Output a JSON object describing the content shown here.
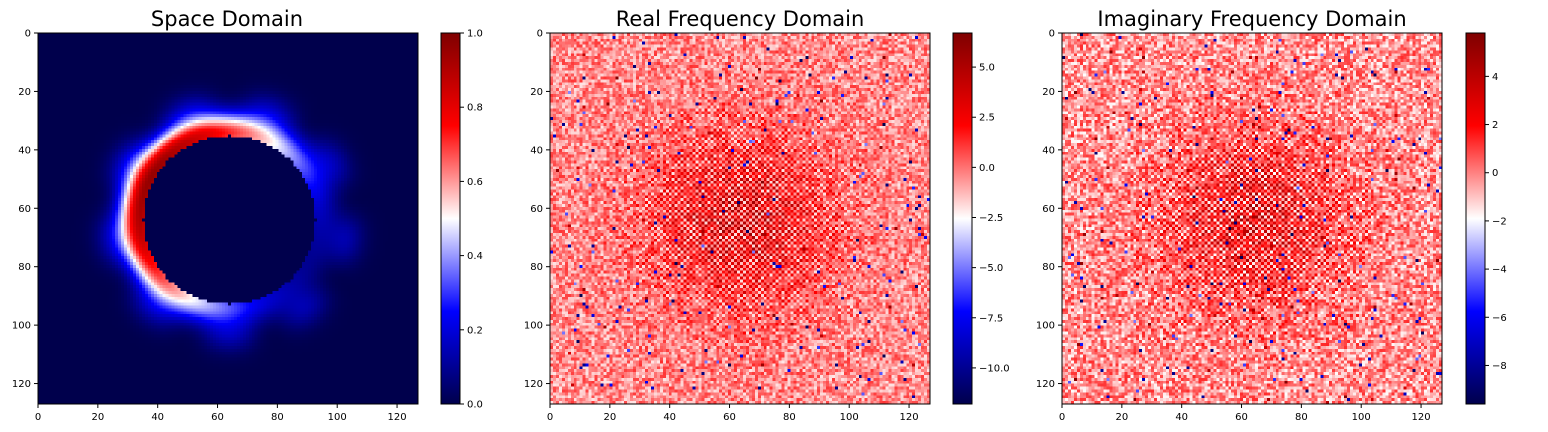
{
  "chart_data": [
    {
      "type": "heatmap",
      "title": "Space Domain",
      "xlabel": "",
      "ylabel": "",
      "xlim": [
        0,
        127
      ],
      "ylim": [
        127,
        0
      ],
      "x_ticks": [
        0,
        20,
        40,
        60,
        80,
        100,
        120
      ],
      "y_ticks": [
        0,
        20,
        40,
        60,
        80,
        100,
        120
      ],
      "grid": false,
      "colormap": "seismic",
      "colormap_stops": [
        "#00004c",
        "#0000ff",
        "#ffffff",
        "#ff0000",
        "#7f0000"
      ],
      "colorbar": {
        "min": 0.0,
        "max": 1.0,
        "ticks": [
          0.0,
          0.2,
          0.4,
          0.6,
          0.8,
          1.0
        ],
        "tick_labels": [
          "0.0",
          "0.2",
          "0.4",
          "0.6",
          "0.8",
          "1.0"
        ]
      },
      "data": {
        "description_kind": "ring",
        "size": [
          128,
          128
        ],
        "center": [
          64,
          64
        ],
        "radius": 30,
        "ring_peak_value": 0.95,
        "background_value": 0.0,
        "ring_angular_extent_deg": [
          150,
          400
        ]
      }
    },
    {
      "type": "heatmap",
      "title": "Real Frequency Domain",
      "xlabel": "",
      "ylabel": "",
      "xlim": [
        0,
        127
      ],
      "ylim": [
        127,
        0
      ],
      "x_ticks": [
        0,
        20,
        40,
        60,
        80,
        100,
        120
      ],
      "y_ticks": [
        0,
        20,
        40,
        60,
        80,
        100,
        120
      ],
      "grid": false,
      "colormap": "seismic",
      "colormap_stops": [
        "#00004c",
        "#0000ff",
        "#ffffff",
        "#ff0000",
        "#7f0000"
      ],
      "colorbar": {
        "min": -11.8,
        "max": 6.7,
        "ticks": [
          -10.0,
          -7.5,
          -5.0,
          -2.5,
          0.0,
          2.5,
          5.0
        ],
        "tick_labels": [
          "−10.0",
          "−7.5",
          "−5.0",
          "−2.5",
          "0.0",
          "2.5",
          "5.0"
        ]
      },
      "data": {
        "description_kind": "log_spectrum_noise",
        "size": [
          128,
          128
        ],
        "center": [
          64,
          64
        ],
        "typical_value": -0.5,
        "center_peak_value": 4.0,
        "min_value": -11.8,
        "max_value": 6.7
      }
    },
    {
      "type": "heatmap",
      "title": "Imaginary Frequency Domain",
      "xlabel": "",
      "ylabel": "",
      "xlim": [
        0,
        127
      ],
      "ylim": [
        127,
        0
      ],
      "x_ticks": [
        0,
        20,
        40,
        60,
        80,
        100,
        120
      ],
      "y_ticks": [
        0,
        20,
        40,
        60,
        80,
        100,
        120
      ],
      "grid": false,
      "colormap": "seismic",
      "colormap_stops": [
        "#00004c",
        "#0000ff",
        "#ffffff",
        "#ff0000",
        "#7f0000"
      ],
      "colorbar": {
        "min": -9.6,
        "max": 5.8,
        "ticks": [
          -8,
          -6,
          -4,
          -2,
          0,
          2,
          4
        ],
        "tick_labels": [
          "−8",
          "−6",
          "−4",
          "−2",
          "0",
          "2",
          "4"
        ]
      },
      "data": {
        "description_kind": "log_spectrum_noise",
        "size": [
          128,
          128
        ],
        "center": [
          64,
          64
        ],
        "typical_value": -0.3,
        "center_peak_value": 3.0,
        "min_value": -9.6,
        "max_value": 5.8
      }
    }
  ]
}
